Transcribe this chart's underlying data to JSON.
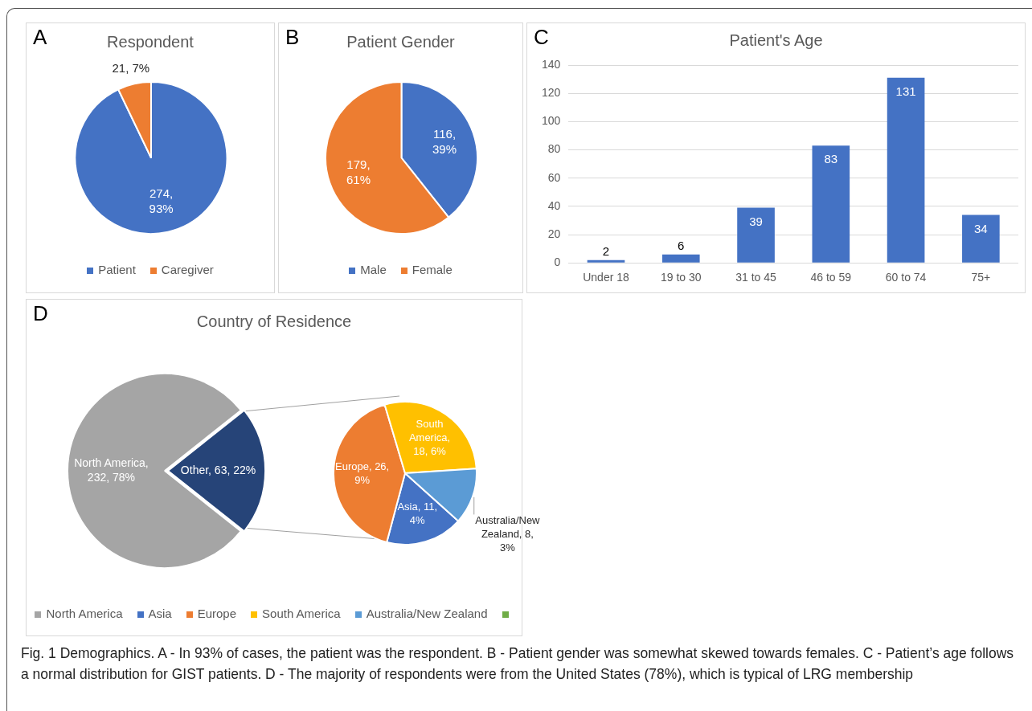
{
  "chart_data": [
    {
      "type": "pie",
      "title": "Respondent",
      "categories": [
        "Patient",
        "Caregiver"
      ],
      "values": [
        274,
        21
      ],
      "colors": [
        "#4472c4",
        "#ed7d31"
      ],
      "value_labels": [
        "274, 93%",
        "21, 7%"
      ],
      "legend": "bottom",
      "annotations": [
        "A"
      ]
    },
    {
      "type": "pie",
      "title": "Patient Gender",
      "categories": [
        "Male",
        "Female"
      ],
      "values": [
        116,
        179
      ],
      "colors": [
        "#4472c4",
        "#ed7d31"
      ],
      "value_labels": [
        "116, 39%",
        "179, 61%"
      ],
      "legend": "bottom",
      "annotations": [
        "B"
      ]
    },
    {
      "type": "bar",
      "title": "Patient's Age",
      "categories": [
        "Under 18",
        "19 to 30",
        "31 to 45",
        "46 to 59",
        "60 to 74",
        "75+"
      ],
      "values": [
        2,
        6,
        39,
        83,
        131,
        34
      ],
      "color": "#4472c4",
      "ylim": [
        0,
        140
      ],
      "yticks": [
        0,
        20,
        40,
        60,
        80,
        100,
        120,
        140
      ],
      "grid": "y",
      "data_labels": true,
      "annotations": [
        "C"
      ]
    },
    {
      "type": "pie",
      "title": "Country of Residence",
      "categories": [
        "North America",
        null
      ],
      "values": [
        232,
        63
      ],
      "colors": [
        "#a5a5a5",
        "#264478"
      ],
      "value_labels": [
        "North America, 232, 78%",
        "Other, 63, 22%"
      ],
      "legend": "bottom",
      "annotations": [
        "D"
      ]
    },
    {
      "type": "pie",
      "categories": [
        "Asia",
        "Europe",
        "South America",
        "Australia/New Zealand",
        null
      ],
      "values": [
        11,
        26,
        18,
        8,
        null
      ],
      "colors": [
        "#4472c4",
        "#ed7d31",
        "#ffc000",
        "#5b9bd5",
        "#70ad47"
      ],
      "value_labels": [
        "Asia, 11, 4%",
        "Europe, 26, 9%",
        "South America, 18, 6%",
        "Australia/New Zealand, 8, 3%",
        null
      ],
      "legend": "bottom",
      "annotations": [
        "Fig. 1  Demographics. A - In 93% of cases, the patient was the respondent. B - Patient gender was somewhat skewed towards females. C - Patient’s age follows a normal distribution for GIST patients. D - The majority of respondents were from the United States (78%), which is typical of LRG membership"
      ]
    }
  ]
}
